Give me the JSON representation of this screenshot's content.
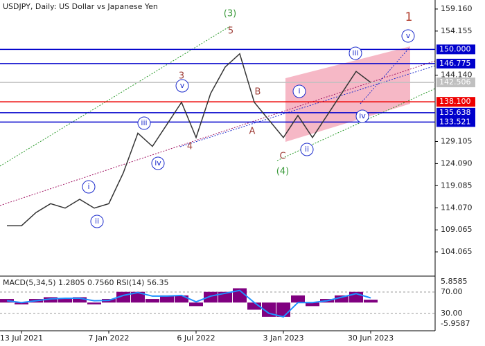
{
  "chart_data": [
    {
      "type": "line",
      "title": "USDJPY, Daily:  US Dollar vs Japanese Yen",
      "categories": [
        null,
        "13 Jul 2021",
        null,
        null,
        null,
        null,
        null,
        "7 Jan 2022",
        null,
        null,
        null,
        null,
        null,
        "6 Jul 2022",
        null,
        null,
        null,
        null,
        null,
        "3 Jan 2023",
        null,
        null,
        null,
        null,
        null,
        "30 Jun 2023",
        null,
        null,
        null,
        null
      ],
      "values": [
        110,
        110,
        113,
        115,
        114,
        116,
        114,
        115,
        122,
        131,
        128,
        133,
        138,
        130,
        140,
        146,
        149,
        138,
        134,
        130,
        135,
        130,
        135,
        140,
        145,
        142.5,
        null,
        null,
        null,
        null
      ],
      "color": "#333333",
      "ylim": [
        98.73,
        161.2
      ],
      "yticks": [
        {
          "value": 159.16,
          "label": "159.160"
        },
        {
          "value": 154.155,
          "label": "154.155"
        },
        {
          "value": 144.14,
          "label": "144.140"
        },
        {
          "value": 129.105,
          "label": "129.105"
        },
        {
          "value": 124.09,
          "label": "124.090"
        },
        {
          "value": 119.085,
          "label": "119.085"
        },
        {
          "value": 114.07,
          "label": "114.070"
        },
        {
          "value": 109.065,
          "label": "109.065"
        },
        {
          "value": 104.065,
          "label": "104.065"
        }
      ],
      "levels": [
        {
          "value": 150,
          "label": "150.000",
          "color": "#0000cc"
        },
        {
          "value": 146.775,
          "label": "146.775",
          "color": "#0000cc"
        },
        {
          "value": 142.506,
          "label": "142.506",
          "color": "#c0c0c0"
        },
        {
          "value": 138.1,
          "label": "138.100",
          "color": "#ee0000"
        },
        {
          "value": 135.638,
          "label": "135.638",
          "color": "#0000cc"
        },
        {
          "value": 133.521,
          "label": "133.521",
          "color": "#0000cc"
        }
      ],
      "annotations": [
        {
          "text": "(3)",
          "color": "#3a9a3a"
        },
        {
          "text": "5",
          "color": "#a0403a"
        },
        {
          "text": "1",
          "color": "#b03a2a"
        },
        {
          "text": "3",
          "color": "#a0403a"
        },
        {
          "text": "4",
          "color": "#a0403a"
        },
        {
          "text": "B",
          "color": "#a0403a"
        },
        {
          "text": "A",
          "color": "#a0403a"
        },
        {
          "text": "C",
          "color": "#a0403a"
        },
        {
          "text": "(4)",
          "color": "#3a9a3a"
        },
        {
          "text": "i",
          "color": "#1a2acc"
        },
        {
          "text": "ii",
          "color": "#1a2acc"
        },
        {
          "text": "iii",
          "color": "#1a2acc"
        },
        {
          "text": "iv",
          "color": "#1a2acc"
        },
        {
          "text": "v",
          "color": "#1a2acc"
        },
        {
          "text": "i",
          "color": "#1a2acc"
        },
        {
          "text": "ii",
          "color": "#1a2acc"
        },
        {
          "text": "iii",
          "color": "#1a2acc"
        },
        {
          "text": "iv",
          "color": "#1a2acc"
        },
        {
          "text": "v",
          "color": "#1a2acc"
        }
      ]
    },
    {
      "type": "bar",
      "title": "MACD(5,34,5) 1.2805 0.7560 RSI(14) 56.35",
      "values": [
        1,
        -0.5,
        1,
        1.5,
        1,
        1.5,
        -0.5,
        1,
        3,
        3,
        1,
        2,
        2,
        -1,
        3,
        3,
        4,
        -2,
        -4,
        -4,
        2,
        -1,
        1,
        2,
        3,
        0.8,
        null,
        null,
        null,
        null
      ],
      "color": "#800080",
      "signal": [
        0.5,
        0,
        0.5,
        1,
        1.2,
        1.2,
        0.5,
        0.6,
        2,
        2.8,
        1.8,
        1.8,
        2,
        0.2,
        1.8,
        2.6,
        3.4,
        0,
        -3,
        -4,
        0,
        0,
        0.5,
        1.5,
        2.5,
        1.3,
        null,
        null,
        null,
        null
      ],
      "signal_color": "#1e90ff",
      "ylim": [
        -7.9,
        7.21
      ],
      "yticks": [
        {
          "value": 5.8585,
          "label": "5.8585"
        },
        {
          "value": -5.9587,
          "label": "-5.9587"
        }
      ],
      "y2lim": [
        -2.3,
        98.4
      ],
      "y2ticks": [
        {
          "value": 70,
          "label": "70.00"
        },
        {
          "value": 30,
          "label": "30.00"
        }
      ]
    }
  ]
}
